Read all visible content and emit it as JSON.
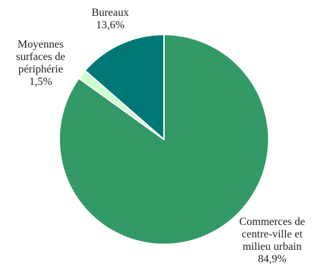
{
  "chart_data": {
    "type": "pie",
    "title": "",
    "slices": [
      {
        "label_lines": [
          "Commerces de",
          "centre-ville et",
          "milieu urbain"
        ],
        "value_text": "84,9%",
        "value": 84.9,
        "color": "#339966"
      },
      {
        "label_lines": [
          "Moyennes",
          "surfaces de",
          "périphérie"
        ],
        "value_text": "1,5%",
        "value": 1.5,
        "color": "#ccffcc"
      },
      {
        "label_lines": [
          "Bureaux"
        ],
        "value_text": "13,6%",
        "value": 13.6,
        "color": "#007777"
      }
    ],
    "start_angle_deg": 0,
    "direction": "clockwise",
    "slice_border_color": "#ffffff",
    "legend": "none"
  }
}
